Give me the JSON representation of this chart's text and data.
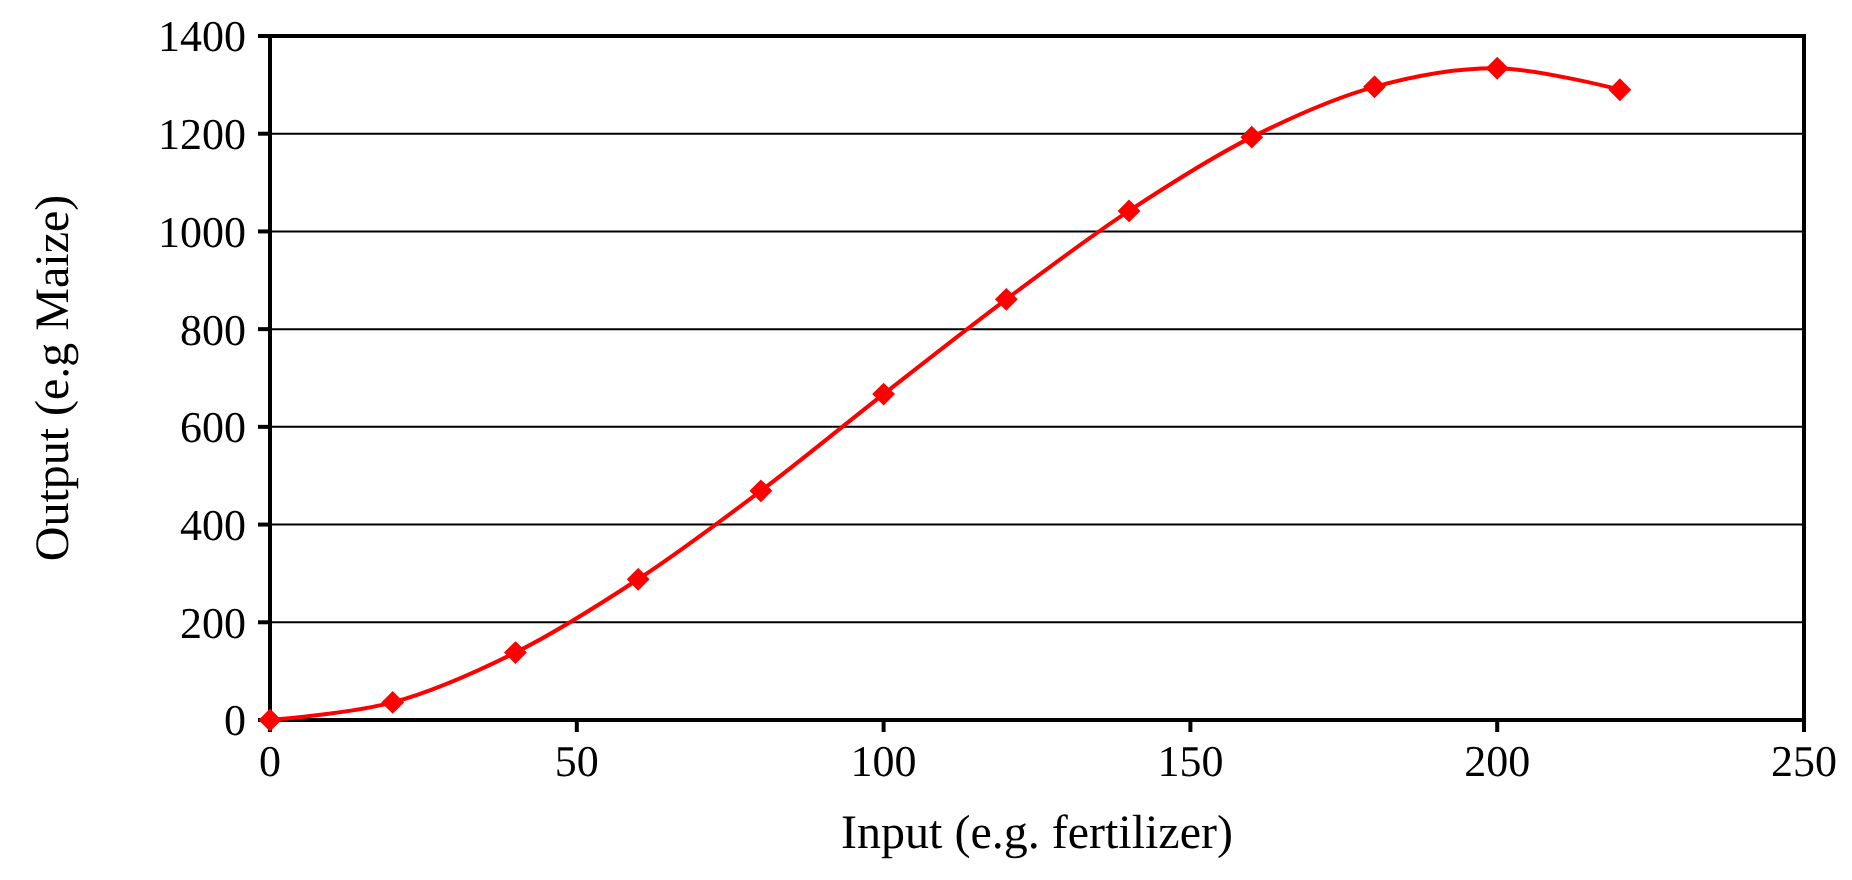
{
  "chart_data": {
    "type": "line",
    "xlabel": "Input (e.g. fertilizer)",
    "ylabel": "Output (e.g Maize)",
    "x": [
      0,
      20,
      40,
      60,
      80,
      100,
      120,
      140,
      160,
      180,
      200,
      220
    ],
    "series": [
      {
        "color": "#ff0000",
        "values": [
          0,
          36,
          138,
          288,
          469,
          667,
          861,
          1042,
          1193,
          1296,
          1334,
          1290
        ]
      }
    ],
    "xlim": [
      0,
      250
    ],
    "xticks": [
      0,
      50,
      100,
      150,
      200,
      250
    ],
    "ylim": [
      0,
      1400
    ],
    "yticks": [
      0,
      200,
      400,
      600,
      800,
      1000,
      1200,
      1400
    ],
    "grid": "y",
    "marker": "diamond",
    "line_style": "solid"
  }
}
